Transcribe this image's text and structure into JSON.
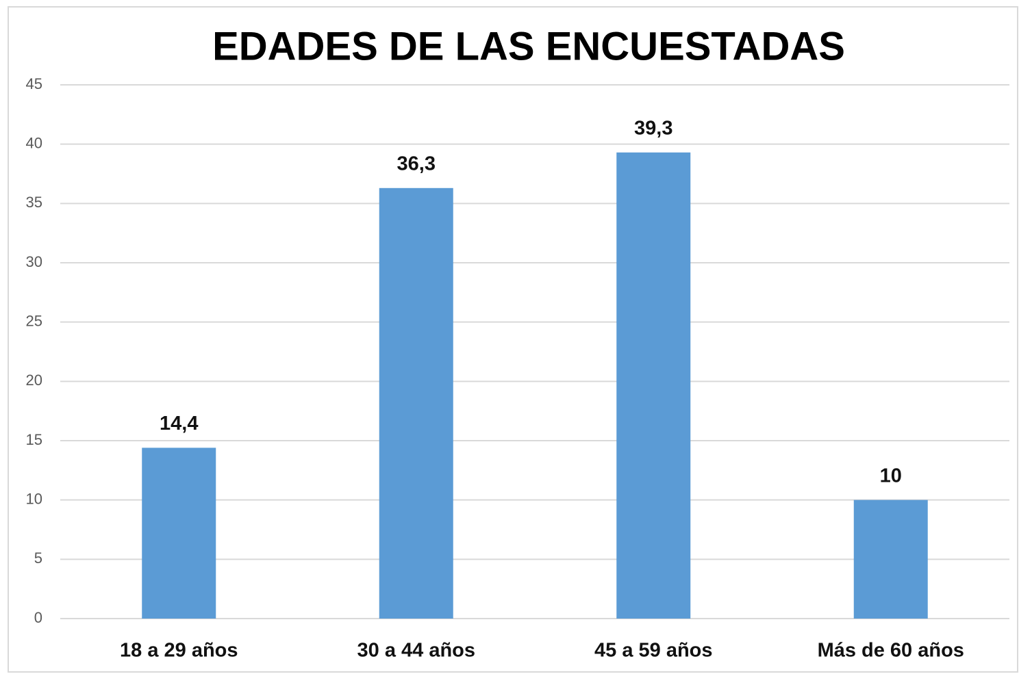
{
  "chart_data": {
    "type": "bar",
    "title": "EDADES DE LAS ENCUESTADAS",
    "categories": [
      "18 a 29 años",
      "30 a 44 años",
      "45 a 59 años",
      "Más de 60 años"
    ],
    "values": [
      14.4,
      36.3,
      39.3,
      10
    ],
    "value_labels": [
      "14,4",
      "36,3",
      "39,3",
      "10"
    ],
    "color": "#5b9bd5",
    "ylim": [
      0,
      45
    ],
    "yticks": [
      0,
      5,
      10,
      15,
      20,
      25,
      30,
      35,
      40,
      45
    ],
    "grid": true
  }
}
